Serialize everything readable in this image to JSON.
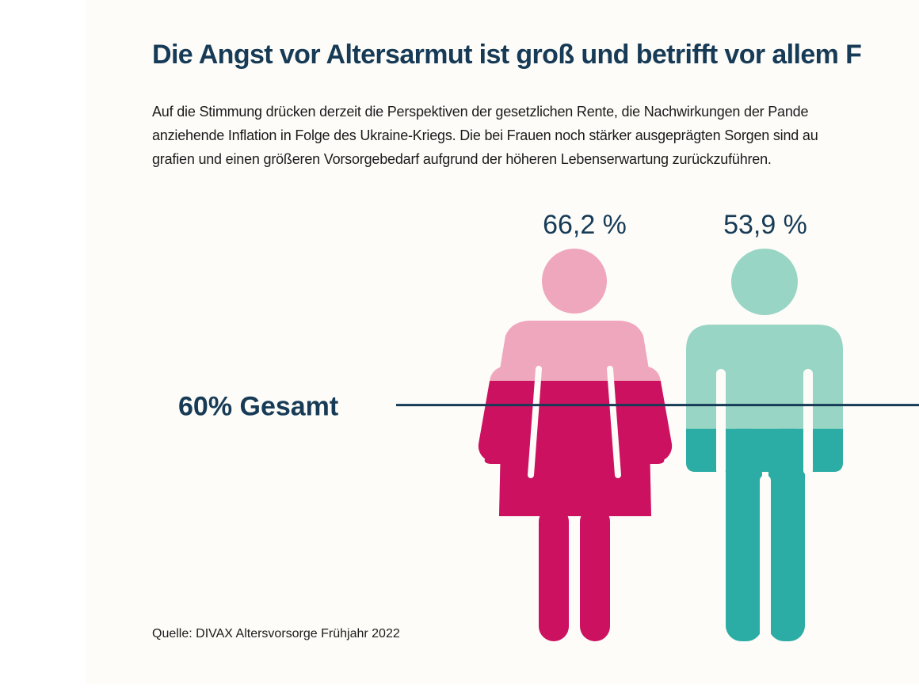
{
  "title": "Die Angst vor Altersarmut ist groß und betrifft vor allem F",
  "intro_lines": [
    "Auf die Stimmung drücken derzeit die Perspektiven der gesetzlichen Rente, die Nachwirkungen der Pande",
    "anziehende Inflation in Folge des Ukraine-Kriegs. Die bei Frauen noch stärker ausgeprägten Sorgen sind au",
    "grafien und einen größeren Vorsorgebedarf aufgrund der höheren Lebenserwartung zurückzuführen."
  ],
  "source": "Quelle: DIVAX Altersvorsorge Frühjahr 2022",
  "chart_data": {
    "type": "bar",
    "categories": [
      "Frauen",
      "Männer"
    ],
    "values": [
      66.2,
      53.9
    ],
    "value_labels": [
      "66,2 %",
      "53,9 %"
    ],
    "unit": "%",
    "ylim": [
      0,
      100
    ],
    "reference_line": {
      "value": 60,
      "label": "60% Gesamt"
    },
    "colors": {
      "women_fill": "#cc1160",
      "women_light": "#efa7bd",
      "men_fill": "#2bada6",
      "men_light": "#98d5c4",
      "line": "#173b56"
    }
  }
}
